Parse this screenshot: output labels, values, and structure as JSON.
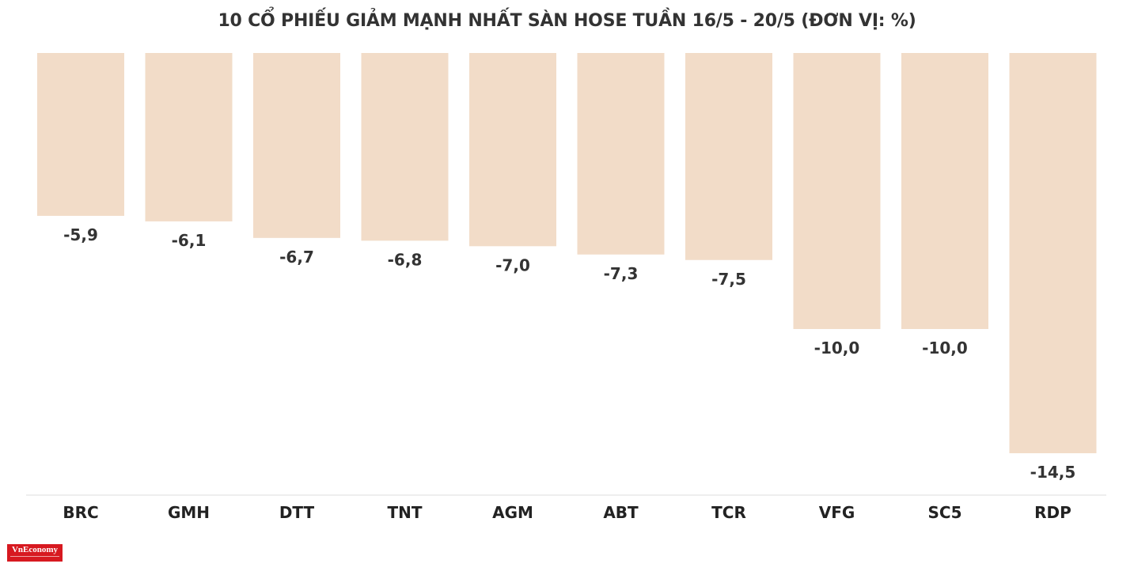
{
  "chart_data": {
    "type": "bar",
    "title": "10 CỔ PHIẾU GIẢM MẠNH NHẤT SÀN HOSE TUẦN 16/5 - 20/5 (ĐƠN VỊ: %)",
    "categories": [
      "BRC",
      "GMH",
      "DTT",
      "TNT",
      "AGM",
      "ABT",
      "TCR",
      "VFG",
      "SC5",
      "RDP"
    ],
    "values": [
      -5.9,
      -6.1,
      -6.7,
      -6.8,
      -7.0,
      -7.3,
      -7.5,
      -10.0,
      -10.0,
      -14.5
    ],
    "value_labels": [
      "-5,9",
      "-6,1",
      "-6,7",
      "-6,8",
      "-7,0",
      "-7,3",
      "-7,5",
      "-10,0",
      "-10,0",
      "-14,5"
    ],
    "xlabel": "",
    "ylabel": "",
    "ylim": [
      -16,
      0
    ],
    "grid": false,
    "bar_color": "#f2dcc8",
    "text_color": "#333333"
  },
  "logo": {
    "text": "VnEconomy"
  }
}
